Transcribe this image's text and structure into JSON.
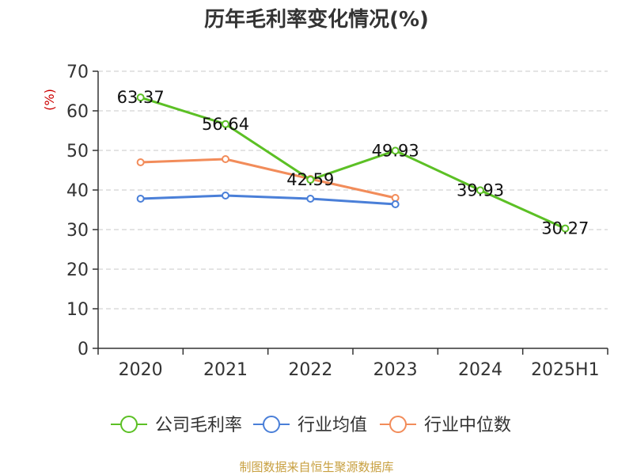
{
  "chart_data": {
    "type": "line",
    "title": "历年毛利率变化情况(%)",
    "ylabel": "(%)",
    "xlabel": "",
    "categories": [
      "2020",
      "2021",
      "2022",
      "2023",
      "2024",
      "2025H1"
    ],
    "ylim": [
      0,
      70
    ],
    "yticks": [
      0,
      10,
      20,
      30,
      40,
      50,
      60,
      70
    ],
    "grid": true,
    "legend_position": "bottom",
    "series": [
      {
        "name": "公司毛利率",
        "color": "#5cc025",
        "values": [
          63.37,
          56.64,
          42.59,
          49.93,
          39.93,
          30.27
        ],
        "labels": [
          "63.37",
          "56.64",
          "42.59",
          "49.93",
          "39.93",
          "30.27"
        ]
      },
      {
        "name": "行业均值",
        "color": "#4a7fd8",
        "values": [
          37.8,
          38.6,
          37.8,
          36.4,
          null,
          null
        ]
      },
      {
        "name": "行业中位数",
        "color": "#f28c5a",
        "values": [
          47.0,
          47.8,
          42.8,
          38.0,
          null,
          null
        ]
      }
    ]
  },
  "source": "制图数据来自恒生聚源数据库"
}
